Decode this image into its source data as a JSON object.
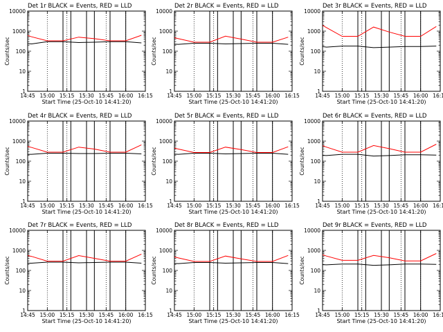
{
  "chart_data": [
    {
      "type": "line",
      "title": "Det 1r BLACK = Events, RED = LLD",
      "xlabel": "Start Time (25-Oct-10 14:41:20)",
      "ylabel": "Counts/sec",
      "yscale": "log",
      "ylim": [
        1,
        10000
      ],
      "xlim": [
        "14:45",
        "16:15"
      ],
      "xticks": [
        "14:45",
        "15:00",
        "15:15",
        "15:30",
        "15:45",
        "16:00",
        "16:15"
      ],
      "yticks": [
        "1",
        "10",
        "100",
        "1000",
        "10000"
      ],
      "series": [
        {
          "name": "Events",
          "color": "#000000",
          "x": [
            14.7,
            14.8,
            15.0,
            15.2,
            15.4,
            15.6,
            15.8,
            16.0,
            16.2
          ],
          "y": [
            250,
            230,
            300,
            300,
            270,
            280,
            300,
            300,
            260
          ]
        },
        {
          "name": "LLD",
          "color": "#ff0000",
          "x": [
            14.7,
            14.8,
            15.0,
            15.2,
            15.4,
            15.6,
            15.8,
            16.0,
            16.2
          ],
          "y": [
            700,
            520,
            330,
            330,
            500,
            420,
            330,
            330,
            620
          ]
        }
      ],
      "gaps": [
        15.2,
        15.3,
        15.5,
        15.6,
        15.8,
        16.0
      ]
    },
    {
      "type": "line",
      "title": "Det 2r BLACK = Events, RED = LLD",
      "xlabel": "Start Time (25-Oct-10 14:41:20)",
      "ylabel": "Counts/sec",
      "yscale": "log",
      "ylim": [
        1,
        10000
      ],
      "xlim": [
        "14:45",
        "16:15"
      ],
      "xticks": [
        "14:45",
        "15:00",
        "15:15",
        "15:30",
        "15:45",
        "16:00",
        "16:15"
      ],
      "yticks": [
        "1",
        "10",
        "100",
        "1000",
        "10000"
      ],
      "series": [
        {
          "name": "Events",
          "color": "#000000",
          "x": [
            14.7,
            14.8,
            15.0,
            15.2,
            15.4,
            15.6,
            15.8,
            16.0,
            16.2
          ],
          "y": [
            230,
            220,
            250,
            250,
            230,
            240,
            250,
            250,
            220
          ]
        },
        {
          "name": "LLD",
          "color": "#ff0000",
          "x": [
            14.7,
            14.8,
            15.0,
            15.2,
            15.4,
            15.6,
            15.8,
            16.0,
            16.2
          ],
          "y": [
            520,
            420,
            280,
            280,
            560,
            400,
            280,
            280,
            500
          ]
        }
      ],
      "gaps": [
        15.2,
        15.3,
        15.5,
        15.6,
        15.8,
        16.0
      ]
    },
    {
      "type": "line",
      "title": "Det 3r BLACK = Events, RED = LLD",
      "xlabel": "Start Time (25-Oct-10 14:41:20)",
      "ylabel": "Counts/sec",
      "yscale": "log",
      "ylim": [
        1,
        10000
      ],
      "xlim": [
        "14:45",
        "16:15"
      ],
      "xticks": [
        "14:45",
        "15:00",
        "15:15",
        "15:30",
        "15:45",
        "16:00",
        "16:15"
      ],
      "yticks": [
        "1",
        "10",
        "100",
        "1000",
        "10000"
      ],
      "series": [
        {
          "name": "Events",
          "color": "#000000",
          "x": [
            14.7,
            14.8,
            15.0,
            15.2,
            15.4,
            15.6,
            15.8,
            16.0,
            16.2
          ],
          "y": [
            180,
            160,
            180,
            180,
            150,
            160,
            170,
            170,
            180
          ]
        },
        {
          "name": "LLD",
          "color": "#ff0000",
          "x": [
            14.7,
            14.8,
            15.0,
            15.2,
            15.4,
            15.6,
            15.8,
            16.0,
            16.2
          ],
          "y": [
            2500,
            1500,
            550,
            550,
            1600,
            900,
            550,
            550,
            1700
          ]
        }
      ],
      "gaps": [
        15.2,
        15.3,
        15.5,
        15.6,
        15.8,
        16.0
      ]
    },
    {
      "type": "line",
      "title": "Det 4r BLACK = Events, RED = LLD",
      "xlabel": "Start Time (25-Oct-10 14:41:20)",
      "ylabel": "Counts/sec",
      "yscale": "log",
      "ylim": [
        1,
        10000
      ],
      "xlim": [
        "14:45",
        "16:15"
      ],
      "xticks": [
        "14:45",
        "15:00",
        "15:15",
        "15:30",
        "15:45",
        "16:00",
        "16:15"
      ],
      "yticks": [
        "1",
        "10",
        "100",
        "1000",
        "10000"
      ],
      "series": [
        {
          "name": "Events",
          "color": "#000000",
          "x": [
            14.7,
            14.8,
            15.0,
            15.2,
            15.4,
            15.6,
            15.8,
            16.0,
            16.2
          ],
          "y": [
            220,
            220,
            250,
            250,
            240,
            240,
            250,
            250,
            230
          ]
        },
        {
          "name": "LLD",
          "color": "#ff0000",
          "x": [
            14.7,
            14.8,
            15.0,
            15.2,
            15.4,
            15.6,
            15.8,
            16.0,
            16.2
          ],
          "y": [
            600,
            480,
            280,
            280,
            500,
            400,
            280,
            280,
            650
          ]
        }
      ],
      "gaps": [
        15.2,
        15.3,
        15.5,
        15.6,
        15.8,
        16.0
      ]
    },
    {
      "type": "line",
      "title": "Det 5r BLACK = Events, RED = LLD",
      "xlabel": "Start Time (25-Oct-10 14:41:20)",
      "ylabel": "Counts/sec",
      "yscale": "log",
      "ylim": [
        1,
        10000
      ],
      "xlim": [
        "14:45",
        "16:15"
      ],
      "xticks": [
        "14:45",
        "15:00",
        "15:15",
        "15:30",
        "15:45",
        "16:00",
        "16:15"
      ],
      "yticks": [
        "1",
        "10",
        "100",
        "1000",
        "10000"
      ],
      "series": [
        {
          "name": "Events",
          "color": "#000000",
          "x": [
            14.7,
            14.8,
            15.0,
            15.2,
            15.4,
            15.6,
            15.8,
            16.0,
            16.2
          ],
          "y": [
            230,
            220,
            250,
            250,
            230,
            240,
            250,
            250,
            220
          ]
        },
        {
          "name": "LLD",
          "color": "#ff0000",
          "x": [
            14.7,
            14.8,
            15.0,
            15.2,
            15.4,
            15.6,
            15.8,
            16.0,
            16.2
          ],
          "y": [
            500,
            400,
            270,
            270,
            500,
            380,
            270,
            270,
            520
          ]
        }
      ],
      "gaps": [
        15.2,
        15.3,
        15.5,
        15.6,
        15.8,
        16.0
      ]
    },
    {
      "type": "line",
      "title": "Det 6r BLACK = Events, RED = LLD",
      "xlabel": "Start Time (25-Oct-10 14:41:20)",
      "ylabel": "Counts/sec",
      "yscale": "log",
      "ylim": [
        1,
        10000
      ],
      "xlim": [
        "14:45",
        "16:15"
      ],
      "xticks": [
        "14:45",
        "15:00",
        "15:15",
        "15:30",
        "15:45",
        "16:00",
        "16:15"
      ],
      "yticks": [
        "1",
        "10",
        "100",
        "1000",
        "10000"
      ],
      "series": [
        {
          "name": "Events",
          "color": "#000000",
          "x": [
            14.7,
            14.8,
            15.0,
            15.2,
            15.4,
            15.6,
            15.8,
            16.0,
            16.2
          ],
          "y": [
            200,
            190,
            220,
            220,
            180,
            190,
            210,
            210,
            200
          ]
        },
        {
          "name": "LLD",
          "color": "#ff0000",
          "x": [
            14.7,
            14.8,
            15.0,
            15.2,
            15.4,
            15.6,
            15.8,
            16.0,
            16.2
          ],
          "y": [
            700,
            500,
            280,
            280,
            600,
            420,
            280,
            280,
            700
          ]
        }
      ],
      "gaps": [
        15.2,
        15.3,
        15.5,
        15.6,
        15.8,
        16.0
      ]
    },
    {
      "type": "line",
      "title": "Det 7r BLACK = Events, RED = LLD",
      "xlabel": "Start Time (25-Oct-10 14:41:20)",
      "ylabel": "Counts/sec",
      "yscale": "log",
      "ylim": [
        1,
        10000
      ],
      "xlim": [
        "14:45",
        "16:15"
      ],
      "xticks": [
        "14:45",
        "15:00",
        "15:15",
        "15:30",
        "15:45",
        "16:00",
        "16:15"
      ],
      "yticks": [
        "1",
        "10",
        "100",
        "1000",
        "10000"
      ],
      "series": [
        {
          "name": "Events",
          "color": "#000000",
          "x": [
            14.7,
            14.8,
            15.0,
            15.2,
            15.4,
            15.6,
            15.8,
            16.0,
            16.2
          ],
          "y": [
            230,
            230,
            260,
            260,
            240,
            250,
            260,
            260,
            230
          ]
        },
        {
          "name": "LLD",
          "color": "#ff0000",
          "x": [
            14.7,
            14.8,
            15.0,
            15.2,
            15.4,
            15.6,
            15.8,
            16.0,
            16.2
          ],
          "y": [
            600,
            500,
            290,
            290,
            550,
            400,
            290,
            290,
            650
          ]
        }
      ],
      "gaps": [
        15.2,
        15.3,
        15.5,
        15.6,
        15.8,
        16.0
      ]
    },
    {
      "type": "line",
      "title": "Det 8r BLACK = Events, RED = LLD",
      "xlabel": "Start Time (25-Oct-10 14:41:20)",
      "ylabel": "Counts/sec",
      "yscale": "log",
      "ylim": [
        1,
        10000
      ],
      "xlim": [
        "14:45",
        "16:15"
      ],
      "xticks": [
        "14:45",
        "15:00",
        "15:15",
        "15:30",
        "15:45",
        "16:00",
        "16:15"
      ],
      "yticks": [
        "1",
        "10",
        "100",
        "1000",
        "10000"
      ],
      "series": [
        {
          "name": "Events",
          "color": "#000000",
          "x": [
            14.7,
            14.8,
            15.0,
            15.2,
            15.4,
            15.6,
            15.8,
            16.0,
            16.2
          ],
          "y": [
            230,
            220,
            250,
            250,
            230,
            240,
            250,
            250,
            220
          ]
        },
        {
          "name": "LLD",
          "color": "#ff0000",
          "x": [
            14.7,
            14.8,
            15.0,
            15.2,
            15.4,
            15.6,
            15.8,
            16.0,
            16.2
          ],
          "y": [
            520,
            420,
            280,
            280,
            520,
            380,
            280,
            280,
            560
          ]
        }
      ],
      "gaps": [
        15.2,
        15.3,
        15.5,
        15.6,
        15.8,
        16.0
      ]
    },
    {
      "type": "line",
      "title": "Det 9r BLACK = Events, RED = LLD",
      "xlabel": "Start Time (25-Oct-10 14:41:20)",
      "ylabel": "Counts/sec",
      "yscale": "log",
      "ylim": [
        1,
        10000
      ],
      "xlim": [
        "14:45",
        "16:15"
      ],
      "xticks": [
        "14:45",
        "15:00",
        "15:15",
        "15:30",
        "15:45",
        "16:00",
        "16:15"
      ],
      "yticks": [
        "1",
        "10",
        "100",
        "1000",
        "10000"
      ],
      "series": [
        {
          "name": "Events",
          "color": "#000000",
          "x": [
            14.7,
            14.8,
            15.0,
            15.2,
            15.4,
            15.6,
            15.8,
            16.0,
            16.2
          ],
          "y": [
            200,
            190,
            210,
            210,
            180,
            190,
            210,
            210,
            200
          ]
        },
        {
          "name": "LLD",
          "color": "#ff0000",
          "x": [
            14.7,
            14.8,
            15.0,
            15.2,
            15.4,
            15.6,
            15.8,
            16.0,
            16.2
          ],
          "y": [
            700,
            520,
            320,
            320,
            560,
            430,
            300,
            300,
            700
          ]
        }
      ],
      "gaps": [
        15.2,
        15.3,
        15.5,
        15.6,
        15.8,
        16.0
      ]
    }
  ]
}
